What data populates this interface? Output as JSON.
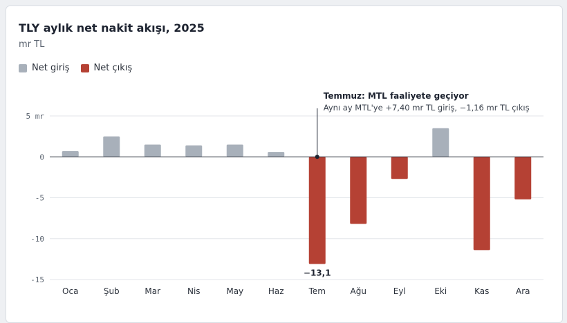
{
  "chart_data": {
    "type": "bar",
    "title": "TLY aylık net nakit akışı, 2025",
    "subtitle": "mr TL",
    "categories": [
      "Oca",
      "Şub",
      "Mar",
      "Nis",
      "May",
      "Haz",
      "Tem",
      "Ağu",
      "Eyl",
      "Eki",
      "Kas",
      "Ara"
    ],
    "values": [
      0.7,
      2.5,
      1.5,
      1.4,
      1.5,
      0.6,
      -13.1,
      -8.2,
      -2.7,
      3.5,
      -11.4,
      -5.2
    ],
    "y_ticks": [
      5,
      0,
      -5,
      -10,
      -15
    ],
    "y_tick_labels": [
      "5 mr",
      "0",
      "-5",
      "-10",
      "-15"
    ],
    "ylim": [
      -15,
      5
    ],
    "grid": true,
    "legend": {
      "position": "top-left",
      "items": [
        {
          "label": "Net giriş",
          "color": "#a8b0ba"
        },
        {
          "label": "Net çıkış",
          "color": "#b54134"
        }
      ]
    },
    "data_labels": [
      {
        "category": "Tem",
        "text": "−13,1"
      }
    ],
    "annotation": {
      "category": "Tem",
      "title": "Temmuz: MTL faaliyete geçiyor",
      "text": "Aynı ay MTL'ye +7,40 mr TL giriş, −1,16 mr TL çıkış"
    },
    "colors": {
      "positive": "#a8b0ba",
      "negative": "#b54134",
      "grid": "#e3e6ea",
      "zero_line": "#2b313b"
    }
  }
}
